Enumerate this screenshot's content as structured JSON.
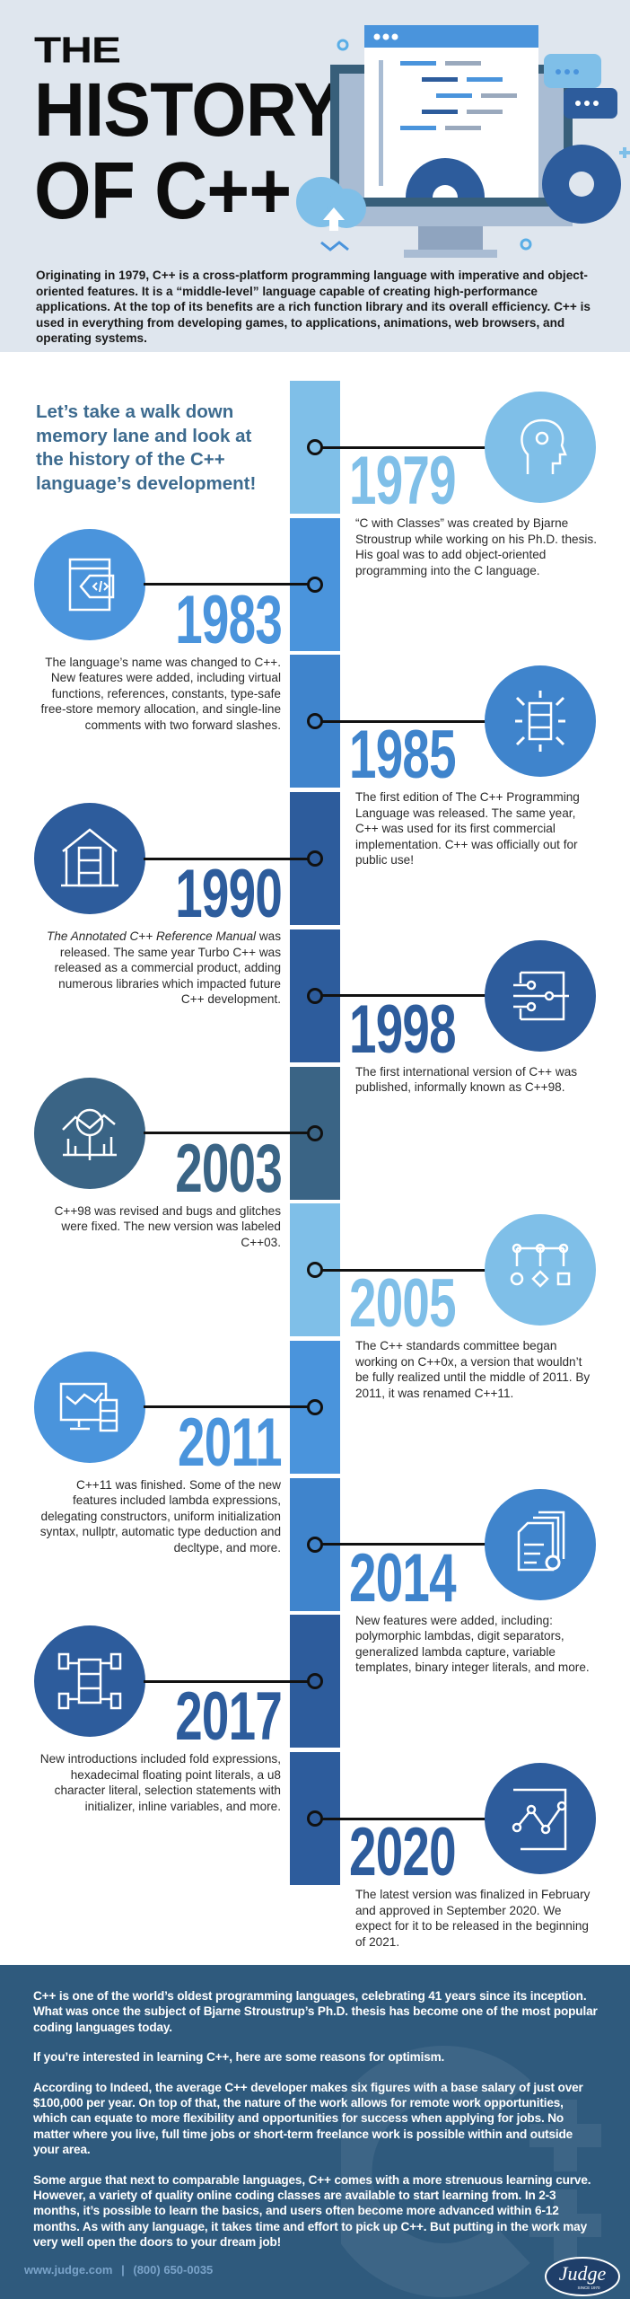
{
  "header": {
    "title_lines": [
      "THE",
      "HISTORY",
      "OF C++"
    ],
    "intro": "Originating in 1979, C++ is a cross-platform programming language with imperative and object-oriented features. It is a “middle-level” language capable of creating high-performance applications. At the top of its benefits are a rich function library and its overall efficiency. C++ is used in everything from developing games, to applications, animations, web browsers, and operating systems."
  },
  "timeline": {
    "lead": "Let’s take a walk down memory lane and look at the history of the C++ language’s development!",
    "entries": [
      {
        "year": "1979",
        "side": "right",
        "color": "#7fbfe8",
        "icon": "head-gear-icon",
        "desc": "“C with Classes” was created by Bjarne Stroustrup while working on his Ph.D. thesis. His goal was to add object-oriented programming into the C language."
      },
      {
        "year": "1983",
        "side": "left",
        "color": "#4a94dc",
        "icon": "code-window-icon",
        "desc": "The language’s name was changed to C++. New features were added, including virtual functions, references, constants, type-safe free-store memory allocation, and single-line comments with two forward slashes."
      },
      {
        "year": "1985",
        "side": "right",
        "color": "#3f84cc",
        "icon": "server-arrows-icon",
        "desc": "The first edition of The C++ Programming Language was released. The same year, C++ was used for its first commercial implementation. C++ was officially out for public use!"
      },
      {
        "year": "1990",
        "side": "left",
        "color": "#2d5c9c",
        "icon": "building-server-icon",
        "desc_italic": "The Annotated C++ Reference Manual",
        "desc": " was released. The same year Turbo C++ was released as a commercial product, adding numerous libraries which impacted future C++ development."
      },
      {
        "year": "1998",
        "side": "right",
        "color": "#2d5c9c",
        "icon": "flow-network-icon",
        "desc": "The first international version of C++ was published, informally known as C++98."
      },
      {
        "year": "2003",
        "side": "left",
        "color": "#3a6485",
        "icon": "chart-magnifier-icon",
        "desc": "C++98 was revised and bugs and glitches were fixed. The new version was labeled C++03."
      },
      {
        "year": "2005",
        "side": "right",
        "color": "#7fbfe8",
        "icon": "hierarchy-shapes-icon",
        "desc": "The C++ standards committee began working on C++0x, a version that wouldn’t be fully realized until the middle of 2011. By 2011, it was renamed C++11."
      },
      {
        "year": "2011",
        "side": "left",
        "color": "#4a94dc",
        "icon": "monitor-chart-icon",
        "desc": "C++11 was finished. Some of the new features included lambda expressions, delegating constructors, uniform initialization syntax, nullptr, automatic type deduction and decltype, and more."
      },
      {
        "year": "2014",
        "side": "right",
        "color": "#3f84cc",
        "icon": "documents-gear-icon",
        "desc": "New features were added, including: polymorphic lambdas, digit separators, generalized lambda capture, variable templates, binary integer literals, and more."
      },
      {
        "year": "2017",
        "side": "left",
        "color": "#2d5c9c",
        "icon": "server-network-icon",
        "desc": "New introductions included fold expressions, hexadecimal floating point literals, a u8 character literal, selection statements with initializer, inline variables, and more."
      },
      {
        "year": "2020",
        "side": "right",
        "color": "#2d5c9c",
        "icon": "chart-board-icon",
        "desc": "The latest version was finalized in February and approved in September 2020. We expect for it to be released in the beginning of 2021."
      }
    ]
  },
  "footer": {
    "paragraphs": [
      "C++ is one of the world’s oldest programming languages, celebrating 41 years since its inception. What was once the subject of Bjarne Stroustrup’s Ph.D. thesis has become one of the most popular coding languages today.",
      "If you’re interested in learning C++, here are some reasons for optimism.",
      "According to Indeed, the average C++ developer makes six figures with a base salary of just over $100,000 per year. On top of that, the nature of the work allows for remote work opportunities, which can equate to more flexibility and opportunities for success when applying for jobs. No matter where you live, full time jobs or short-term freelance work is possible within and outside your area.",
      "Some argue that next to comparable languages, C++ comes with a more strenuous learning curve. However, a variety of quality online coding classes are available to start learning from. In 2-3 months, it’s possible to learn the basics, and users often become more advanced within 6-12 months. As with any language, it takes time and effort to pick up C++. But putting in the work may very well open the doors to your dream job!"
    ],
    "website": "www.judge.com",
    "separator": "|",
    "phone": "(800) 650-0035",
    "logo_text": "Judge",
    "logo_subtext": "SINCE 1970",
    "watermark": "C++"
  },
  "colors": {
    "header_bg": "#dfe6ee",
    "lead_text": "#3d6b8f",
    "footer_bg": "#2f5a7d"
  }
}
